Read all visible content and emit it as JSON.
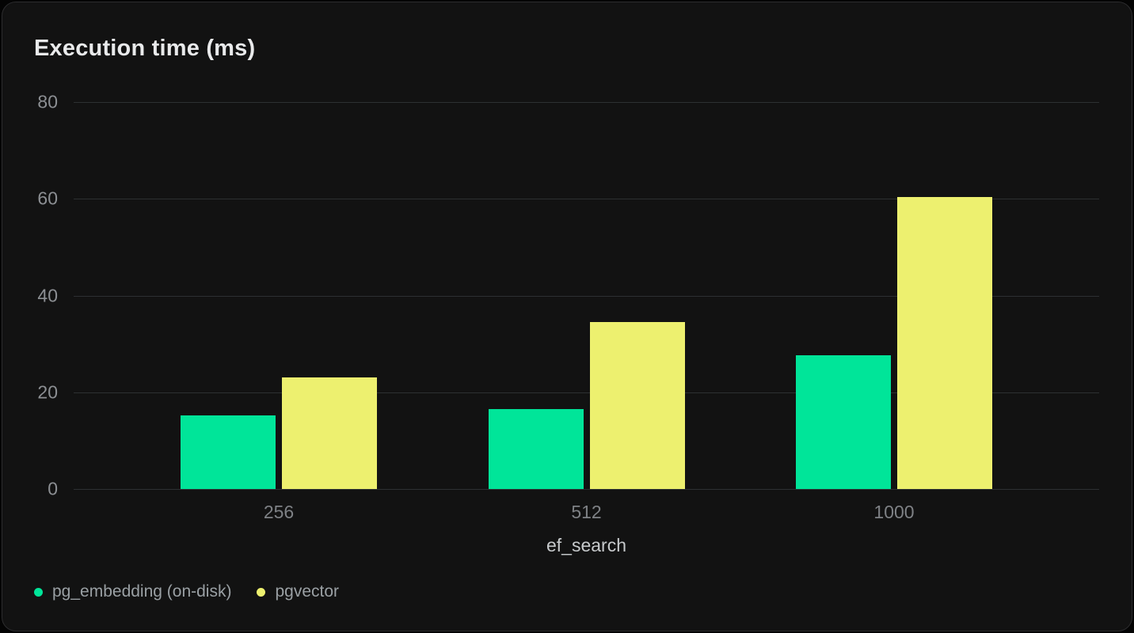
{
  "card": {
    "title": "Execution time (ms)"
  },
  "chart_data": {
    "type": "bar",
    "title": "Execution time (ms)",
    "xlabel": "ef_search",
    "ylabel": "Execution time (ms)",
    "categories": [
      "256",
      "512",
      "1000"
    ],
    "series": [
      {
        "name": "pg_embedding (on-disk)",
        "color": "#00e599",
        "values": [
          15.2,
          16.5,
          27.7
        ]
      },
      {
        "name": "pgvector",
        "color": "#edf06f",
        "values": [
          23.1,
          34.5,
          60.4
        ]
      }
    ],
    "ylim": [
      0,
      80
    ],
    "yticks": [
      0,
      20,
      40,
      60,
      80
    ],
    "grid": true,
    "legend_position": "bottom-left",
    "colors": {
      "background": "#121212",
      "gridline": "#2d3032",
      "title_text": "#e9eaeb",
      "tick_text": "#8c8f93",
      "axis_label_text": "#c7cacc",
      "legend_text": "#9aa0a4"
    }
  }
}
